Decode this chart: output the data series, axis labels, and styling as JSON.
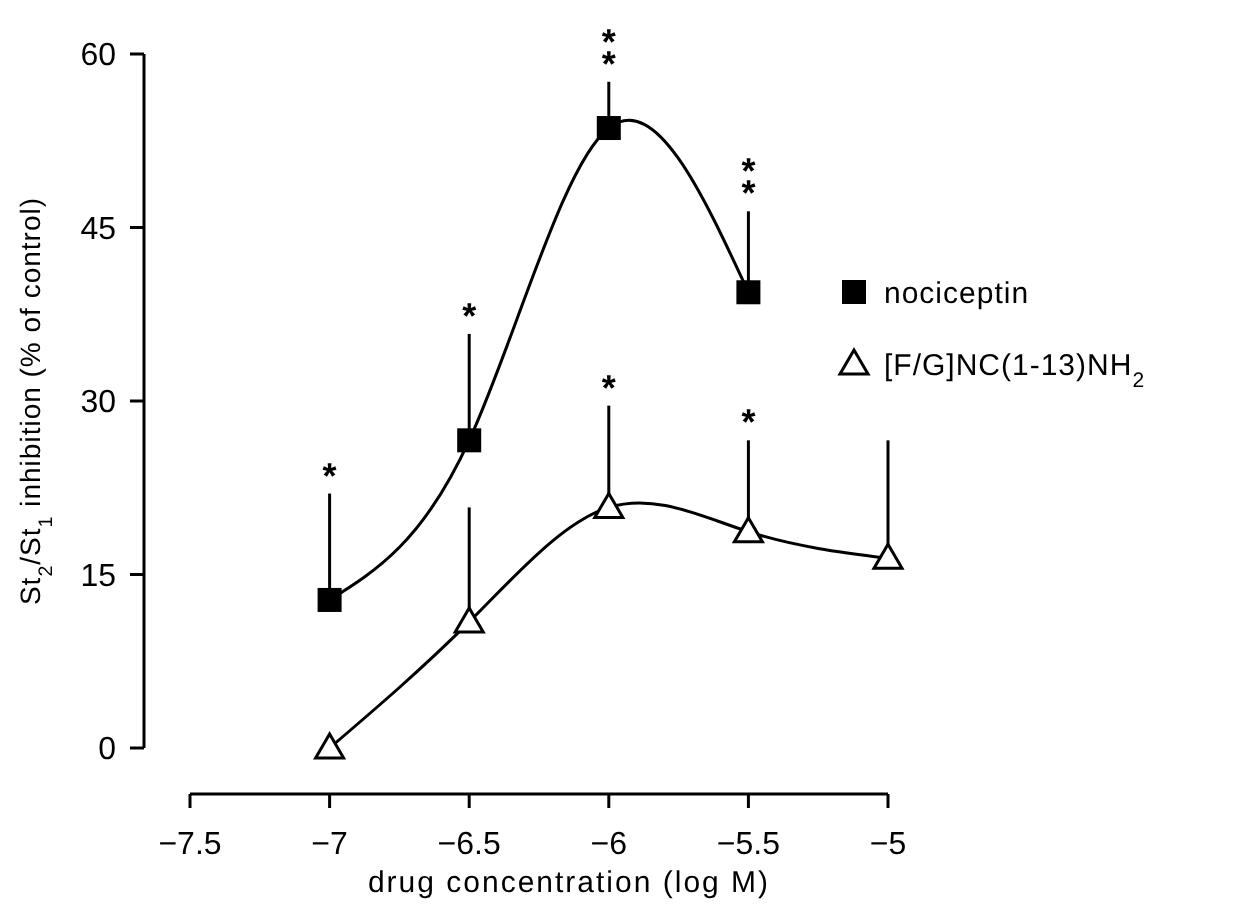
{
  "chart_data": {
    "type": "line",
    "xlabel": "drug concentration (log M)",
    "ylabel": "St$_{2}$/St$_{1}$ inhibition (% of control)",
    "xlim": [
      -7.5,
      -5
    ],
    "xticks": [
      {
        "value": -7.5,
        "label": "−7.5"
      },
      {
        "value": -7,
        "label": "−7"
      },
      {
        "value": -6.5,
        "label": "−6.5"
      },
      {
        "value": -6,
        "label": "−6"
      },
      {
        "value": -5.5,
        "label": "−5.5"
      },
      {
        "value": -5,
        "label": "−5"
      }
    ],
    "ylim": [
      0,
      60
    ],
    "yticks": [
      0,
      15,
      30,
      45,
      60
    ],
    "grid": false,
    "legend": "right",
    "line_style": "solid",
    "series": [
      {
        "name": "nociceptin",
        "color": "#000000",
        "marker": "square",
        "x": [
          -7,
          -6.5,
          -6,
          -5.5
        ],
        "values": [
          12.8,
          26.6,
          53.6,
          39.4
        ],
        "errors": [
          [
            12.8,
            22.0
          ],
          [
            26.6,
            35.8
          ],
          [
            53.6,
            57.6
          ],
          [
            39.4,
            46.4
          ]
        ]
      },
      {
        "name": "[F/G]NC(1-13)NH$_{2}$",
        "color": "#000000",
        "marker": "triangle",
        "x": [
          -7,
          -6.5,
          -6,
          -5.5,
          -5
        ],
        "values": [
          0,
          10.9,
          20.8,
          18.7,
          16.4
        ],
        "errors": [
          null,
          [
            10.9,
            20.8
          ],
          [
            20.8,
            29.6
          ],
          [
            18.7,
            26.6
          ],
          [
            16.4,
            26.6
          ]
        ]
      }
    ],
    "annotations": [
      {
        "text": "*",
        "x": -7,
        "y": 22.0
      },
      {
        "text": "*",
        "x": -6.5,
        "y": 35.8
      },
      {
        "text": "**",
        "x": -6,
        "y": 57.6
      },
      {
        "text": "**",
        "x": -5.5,
        "y": 46.4
      },
      {
        "text": "*",
        "x": -6,
        "y": 29.6
      },
      {
        "text": "*",
        "x": -5.5,
        "y": 26.6
      }
    ]
  }
}
